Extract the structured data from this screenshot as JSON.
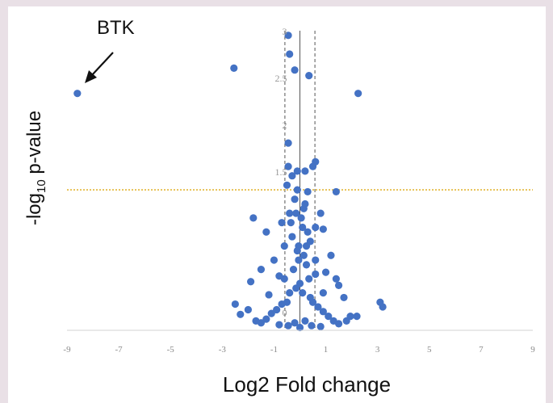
{
  "chart_data": {
    "type": "scatter",
    "title": "",
    "xlabel": "Log2 Fold change",
    "ylabel_main": "-log",
    "ylabel_sub": "10",
    "ylabel_rest": " p-value",
    "xlim": [
      -9,
      9
    ],
    "ylim": [
      -0.2,
      3
    ],
    "grid": false,
    "x_ticks": [
      -9,
      -7,
      -5,
      -3,
      -1,
      1,
      3,
      5,
      7,
      9
    ],
    "x_tick_labels": [
      "-9",
      "-7",
      "-5",
      "-3",
      "-1",
      "1",
      "3",
      "5",
      "7",
      "9"
    ],
    "y_ticks": [
      3,
      2.5,
      2,
      1.5,
      0
    ],
    "y_tick_labels": [
      "3",
      "2.5",
      "2",
      "1.5",
      "0"
    ],
    "vertical_lines": [
      {
        "x": -0.58,
        "style": "dashed",
        "color": "#555555"
      },
      {
        "x": 0,
        "style": "solid",
        "color": "#555555"
      },
      {
        "x": 0.58,
        "style": "dashed",
        "color": "#555555"
      }
    ],
    "threshold_line": {
      "y": 1.3,
      "style": "dotted",
      "color": "#e2b637"
    },
    "annotation": {
      "text": "BTK",
      "x": -8.6,
      "y": 2.33
    },
    "marker_color": "#4472c4",
    "points": [
      [
        -8.6,
        2.33
      ],
      [
        -2.55,
        2.6
      ],
      [
        2.25,
        2.33
      ],
      [
        -0.45,
        2.95
      ],
      [
        -0.4,
        2.75
      ],
      [
        -0.2,
        2.58
      ],
      [
        0.35,
        2.52
      ],
      [
        -0.45,
        1.8
      ],
      [
        -0.45,
        1.55
      ],
      [
        -0.1,
        1.5
      ],
      [
        0.5,
        1.55
      ],
      [
        0.6,
        1.6
      ],
      [
        0.2,
        1.5
      ],
      [
        -0.3,
        1.45
      ],
      [
        -0.5,
        1.35
      ],
      [
        -0.1,
        1.3
      ],
      [
        0.3,
        1.28
      ],
      [
        1.4,
        1.28
      ],
      [
        -0.2,
        1.2
      ],
      [
        0.2,
        1.15
      ],
      [
        -0.4,
        1.05
      ],
      [
        0.8,
        1.05
      ],
      [
        -1.8,
        1.0
      ],
      [
        -0.7,
        0.95
      ],
      [
        0.6,
        0.9
      ],
      [
        -1.3,
        0.85
      ],
      [
        0.9,
        0.88
      ],
      [
        -0.3,
        0.8
      ],
      [
        0.4,
        0.75
      ],
      [
        -0.6,
        0.7
      ],
      [
        1.2,
        0.6
      ],
      [
        -1.0,
        0.55
      ],
      [
        -1.5,
        0.45
      ],
      [
        1.0,
        0.42
      ],
      [
        -0.8,
        0.38
      ],
      [
        1.4,
        0.35
      ],
      [
        -1.9,
        0.32
      ],
      [
        1.5,
        0.28
      ],
      [
        0.9,
        0.2
      ],
      [
        -1.2,
        0.18
      ],
      [
        1.7,
        0.15
      ],
      [
        -2.5,
        0.08
      ],
      [
        3.1,
        0.1
      ],
      [
        3.2,
        0.05
      ],
      [
        -2.3,
        -0.03
      ],
      [
        2.2,
        -0.05
      ],
      [
        1.95,
        -0.05
      ],
      [
        -2.0,
        0.02
      ],
      [
        0.6,
        0.55
      ],
      [
        -0.1,
        0.65
      ],
      [
        0.1,
        0.9
      ],
      [
        0.05,
        1.0
      ],
      [
        -0.05,
        0.7
      ],
      [
        0.15,
        0.6
      ],
      [
        0.25,
        0.5
      ],
      [
        -0.25,
        0.45
      ],
      [
        0.35,
        0.35
      ],
      [
        0.0,
        0.3
      ],
      [
        0.1,
        0.2
      ],
      [
        -0.15,
        0.25
      ],
      [
        0.4,
        0.15
      ],
      [
        -0.4,
        0.2
      ],
      [
        0.5,
        0.1
      ],
      [
        -0.5,
        0.1
      ],
      [
        0.7,
        0.05
      ],
      [
        -0.7,
        0.08
      ],
      [
        0.9,
        0.0
      ],
      [
        -0.9,
        0.02
      ],
      [
        1.1,
        -0.05
      ],
      [
        -1.1,
        -0.02
      ],
      [
        1.3,
        -0.1
      ],
      [
        -1.3,
        -0.08
      ],
      [
        0.2,
        -0.1
      ],
      [
        -0.2,
        -0.12
      ],
      [
        0.45,
        -0.15
      ],
      [
        -0.45,
        -0.15
      ],
      [
        0.0,
        -0.17
      ],
      [
        0.8,
        -0.16
      ],
      [
        -0.8,
        -0.14
      ],
      [
        1.5,
        -0.13
      ],
      [
        -1.5,
        -0.12
      ],
      [
        1.8,
        -0.1
      ],
      [
        -1.7,
        -0.1
      ],
      [
        0.6,
        0.4
      ],
      [
        -0.6,
        0.35
      ],
      [
        0.3,
        0.85
      ],
      [
        -0.35,
        0.95
      ],
      [
        0.15,
        1.1
      ],
      [
        -0.15,
        1.05
      ],
      [
        0.25,
        0.7
      ],
      [
        -0.05,
        0.55
      ]
    ]
  }
}
